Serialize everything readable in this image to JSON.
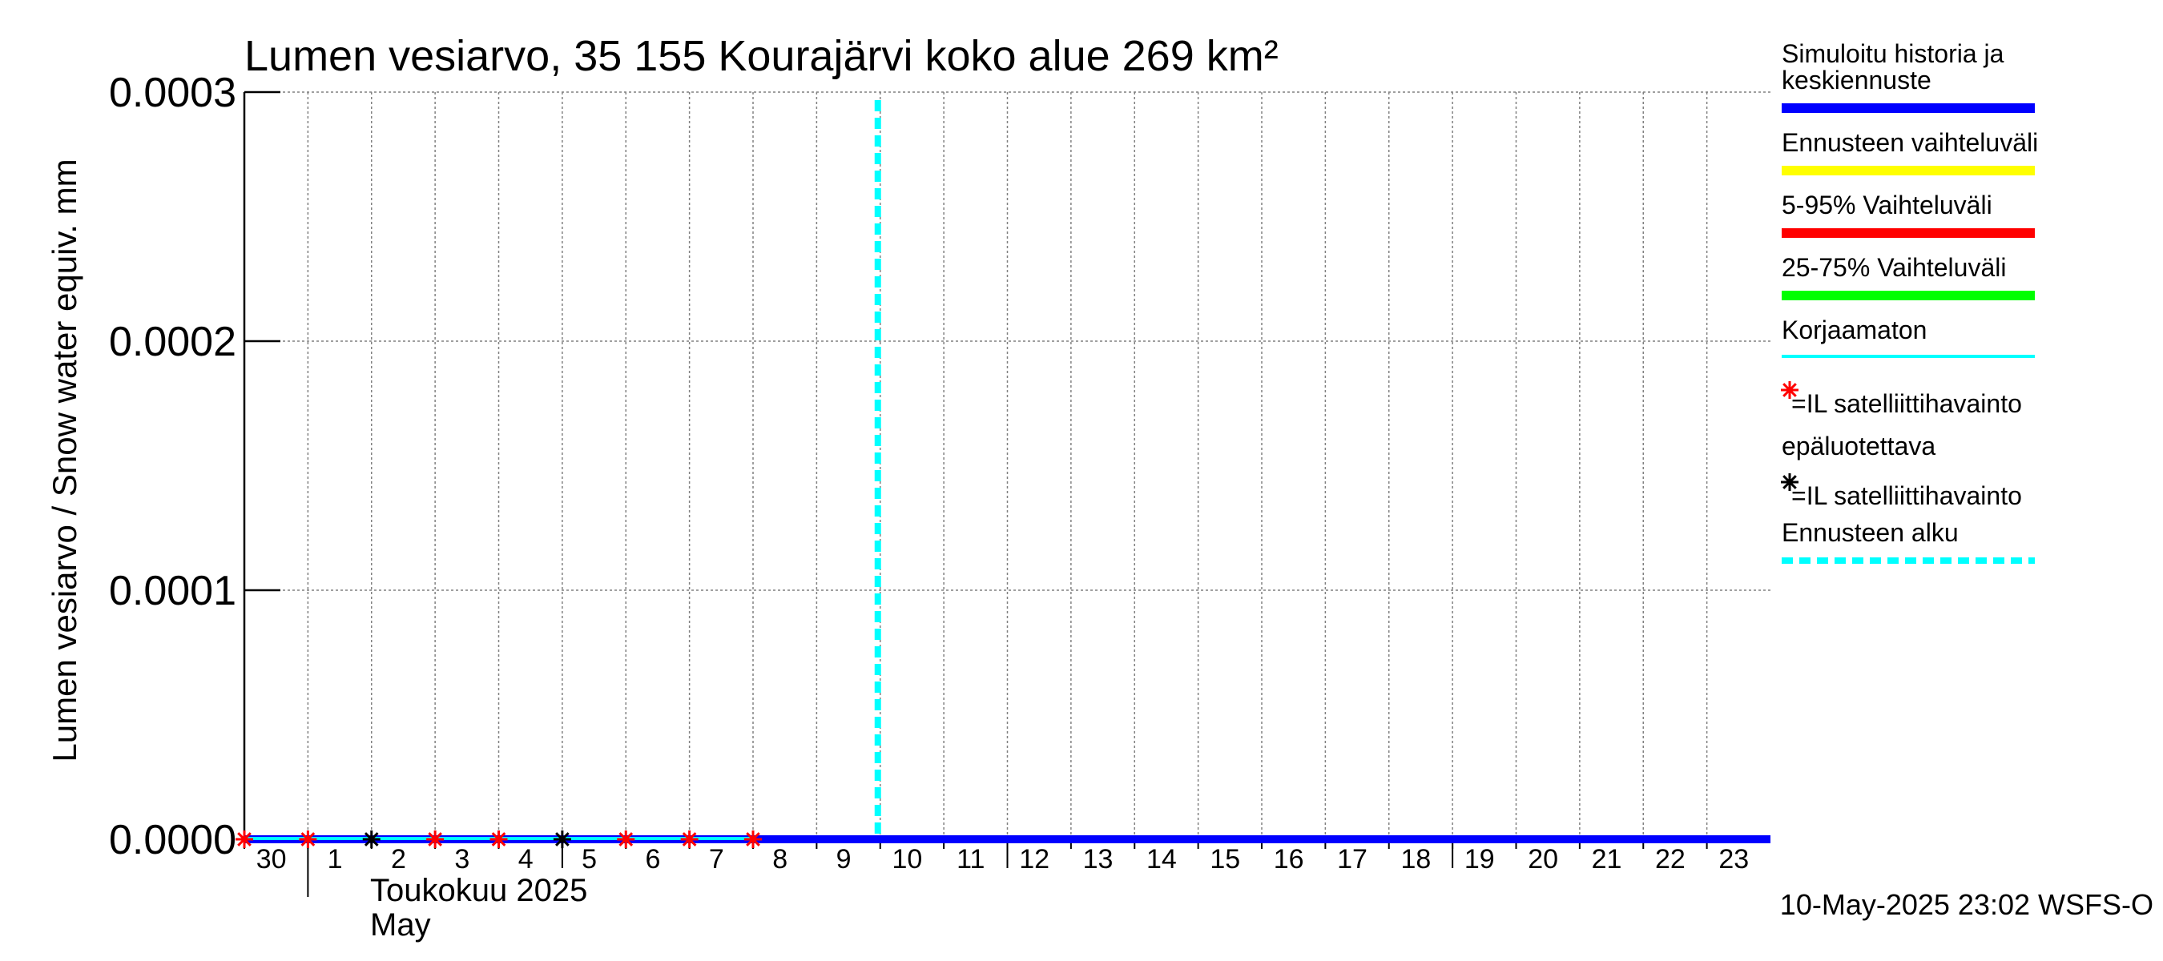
{
  "chart_data": {
    "type": "line",
    "title": "Lumen vesiarvo, 35 155 Kourajärvi koko alue 269 km²",
    "ylabel": "Lumen vesiarvo / Snow water equiv.    mm",
    "ylim": [
      0,
      0.0003
    ],
    "y_ticks": [
      "0.0000",
      "0.0001",
      "0.0002",
      "0.0003"
    ],
    "y_tick_values": [
      0,
      0.0001,
      0.0002,
      0.0003
    ],
    "x_range": [
      "2025-04-30",
      "2025-05-24"
    ],
    "x_tick_labels": [
      "30",
      "1",
      "2",
      "3",
      "4",
      "5",
      "6",
      "7",
      "8",
      "9",
      "10",
      "11",
      "12",
      "13",
      "14",
      "15",
      "16",
      "17",
      "18",
      "19",
      "20",
      "21",
      "22",
      "23"
    ],
    "month_label_fi": "Toukokuu  2025",
    "month_label_en": "May",
    "grid": true,
    "legend_position": "right",
    "forecast_start": "2025-05-10",
    "series": [
      {
        "name": "Simuloitu historia ja keskiennuste",
        "color": "#0000ff",
        "x": [
          "2025-04-30",
          "2025-05-24"
        ],
        "values": [
          0,
          0
        ]
      },
      {
        "name": "Korjaamaton",
        "color": "#00ffff",
        "x": [
          "2025-04-30",
          "2025-05-08"
        ],
        "values": [
          0,
          0
        ]
      }
    ],
    "markers_unreliable": {
      "name": "=IL satelliittihavainto epäluotettava",
      "color": "#ff0000",
      "x": [
        "2025-04-30",
        "2025-05-01",
        "2025-05-03",
        "2025-05-04",
        "2025-05-06",
        "2025-05-07",
        "2025-05-08"
      ],
      "values": [
        0,
        0,
        0,
        0,
        0,
        0,
        0
      ]
    },
    "markers_reliable": {
      "name": "=IL satelliittihavainto",
      "color": "#000000",
      "x": [
        "2025-05-02",
        "2025-05-05"
      ],
      "values": [
        0,
        0
      ]
    },
    "legend": [
      {
        "label": "Simuloitu historia ja",
        "label2": "keskiennuste",
        "color": "#0000ff",
        "style": "line"
      },
      {
        "label": "Ennusteen vaihteluväli",
        "color": "#ffff00",
        "style": "line"
      },
      {
        "label": "5-95% Vaihteluväli",
        "color": "#ff0000",
        "style": "line"
      },
      {
        "label": "25-75% Vaihteluväli",
        "color": "#00ff00",
        "style": "line"
      },
      {
        "label": "Korjaamaton",
        "color": "#00ffff",
        "style": "thin"
      },
      {
        "label": "=IL satelliittihavainto",
        "label2": "epäluotettava",
        "color": "#ff0000",
        "style": "star"
      },
      {
        "label": "=IL satelliittihavainto",
        "color": "#000000",
        "style": "star"
      },
      {
        "label": "Ennusteen alku",
        "color": "#00ffff",
        "style": "dashed"
      }
    ],
    "footer": "10-May-2025 23:02 WSFS-O"
  }
}
